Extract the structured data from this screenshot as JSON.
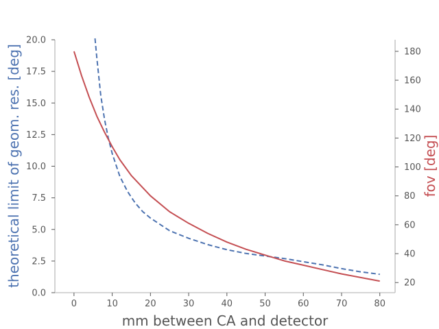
{
  "chart_data": {
    "type": "line",
    "xlabel": "mm between CA and detector",
    "ylabel_left": "theoretical limit of geom. res. [deg]",
    "ylabel_right": "fov [deg]",
    "xlim": [
      -5,
      84
    ],
    "ylim_left": [
      0,
      20
    ],
    "ylim_right": [
      13,
      188
    ],
    "x_ticks": [
      0,
      10,
      20,
      30,
      40,
      50,
      60,
      70,
      80
    ],
    "y_ticks_left": [
      "0.0",
      "2.5",
      "5.0",
      "7.5",
      "10.0",
      "12.5",
      "15.0",
      "17.5",
      "20.0"
    ],
    "y_ticks_right": [
      20,
      40,
      60,
      80,
      100,
      120,
      140,
      160,
      180
    ],
    "grid": false,
    "colors": {
      "left_axis": "#4c72b0",
      "right_axis": "#c44e52",
      "text": "#555555"
    },
    "series": [
      {
        "axis": "left",
        "style": "dashed",
        "color": "#4c72b0",
        "x": [
          5.5,
          6,
          7,
          8,
          9,
          10,
          12,
          14,
          16,
          18,
          20,
          25,
          30,
          35,
          40,
          45,
          50,
          55,
          60,
          65,
          70,
          75,
          80
        ],
        "y": [
          20.5,
          18.5,
          15.6,
          13.7,
          12.2,
          11.0,
          9.2,
          8.0,
          7.1,
          6.4,
          5.9,
          4.9,
          4.3,
          3.8,
          3.4,
          3.1,
          2.9,
          2.7,
          2.45,
          2.2,
          1.9,
          1.65,
          1.45
        ]
      },
      {
        "axis": "right",
        "style": "solid",
        "color": "#c44e52",
        "x": [
          0,
          2,
          4,
          6,
          8,
          10,
          12,
          15,
          20,
          25,
          30,
          35,
          40,
          45,
          50,
          55,
          60,
          65,
          70,
          75,
          80
        ],
        "y": [
          180,
          163,
          148,
          135,
          124,
          114,
          105,
          94,
          80,
          69,
          61,
          54,
          48,
          43,
          39,
          35,
          32,
          29,
          26,
          23.5,
          21
        ]
      }
    ]
  }
}
